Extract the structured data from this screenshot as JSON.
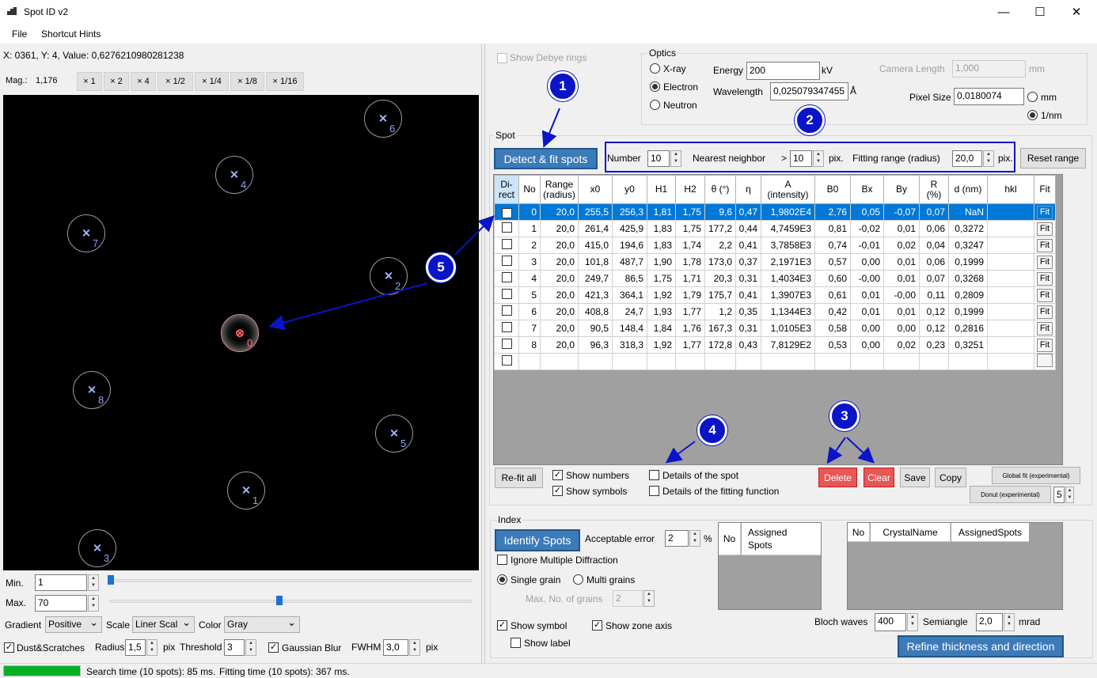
{
  "window": {
    "title": "Spot ID v2",
    "minimize": "—",
    "maximize": "☐",
    "close": "✕"
  },
  "menu": {
    "file": "File",
    "hints": "Shortcut Hints"
  },
  "left": {
    "coord_text": "X: 0361, Y: 4, Value: 0,6276210980281238",
    "mag_label": "Mag.:",
    "mag_value": "1,176",
    "mag_buttons": [
      "× 1",
      "× 2",
      "× 4",
      "× 1/2",
      "× 1/4",
      "× 1/8",
      "× 1/16"
    ],
    "spots": [
      {
        "n": "0"
      },
      {
        "n": "1"
      },
      {
        "n": "2"
      },
      {
        "n": "3"
      },
      {
        "n": "4"
      },
      {
        "n": "5"
      },
      {
        "n": "6"
      },
      {
        "n": "7"
      },
      {
        "n": "8"
      }
    ],
    "min_label": "Min.",
    "min_value": "1",
    "max_label": "Max.",
    "max_value": "70",
    "gradient_label": "Gradient",
    "gradient_value": "Positive",
    "scale_label": "Scale",
    "scale_value": "Liner Scal",
    "color_label": "Color",
    "color_value": "Gray",
    "dust_label": "Dust&Scratches",
    "radius_label": "Radius",
    "radius_value": "1,5",
    "radius_unit": "pix",
    "threshold_label": "Threshold",
    "threshold_value": "3",
    "blur_label": "Gaussian Blur",
    "fwhm_label": "FWHM",
    "fwhm_value": "3,0",
    "fwhm_unit": "pix"
  },
  "optics": {
    "show_debye": "Show Debye rings",
    "group_title": "Optics",
    "xray": "X-ray",
    "electron": "Electron",
    "neutron": "Neutron",
    "energy_label": "Energy",
    "energy_value": "200",
    "energy_unit": "kV",
    "wavelength_label": "Wavelength",
    "wavelength_value": "0,025079347455",
    "wavelength_unit": "Å",
    "camera_label": "Camera Length",
    "camera_value": "1,000",
    "camera_unit": "mm",
    "pixel_label": "Pixel Size",
    "pixel_value": "0,0180074",
    "unit_mm": "mm",
    "unit_nm": "1/nm"
  },
  "spot": {
    "group_title": "Spot",
    "detect_button": "Detect & fit spots",
    "number_label": "Number",
    "number_value": "10",
    "nn_label": "Nearest neighbor",
    "nn_gt": ">",
    "nn_value": "10",
    "nn_unit": "pix.",
    "fit_label": "Fitting range (radius)",
    "fit_value": "20,0",
    "fit_unit": "pix.",
    "reset_button": "Reset range",
    "columns": [
      "Di-\nrect",
      "No",
      "Range\n(radius)",
      "x0",
      "y0",
      "H1",
      "H2",
      "θ (°)",
      "η",
      "A\n(intensity)",
      "B0",
      "Bx",
      "By",
      "R\n(%)",
      "d (nm)",
      "hkl",
      "Fit"
    ],
    "rows": [
      [
        "0",
        "20,0",
        "255,5",
        "256,3",
        "1,81",
        "1,75",
        "9,6",
        "0,47",
        "1,9802E4",
        "2,76",
        "0,05",
        "-0,07",
        "0,07",
        "NaN",
        ""
      ],
      [
        "1",
        "20,0",
        "261,4",
        "425,9",
        "1,83",
        "1,75",
        "177,2",
        "0,44",
        "4,7459E3",
        "0,81",
        "-0,02",
        "0,01",
        "0,06",
        "0,3272",
        ""
      ],
      [
        "2",
        "20,0",
        "415,0",
        "194,6",
        "1,83",
        "1,74",
        "2,2",
        "0,41",
        "3,7858E3",
        "0,74",
        "-0,01",
        "0,02",
        "0,04",
        "0,3247",
        ""
      ],
      [
        "3",
        "20,0",
        "101,8",
        "487,7",
        "1,90",
        "1,78",
        "173,0",
        "0,37",
        "2,1971E3",
        "0,57",
        "0,00",
        "0,01",
        "0,06",
        "0,1999",
        ""
      ],
      [
        "4",
        "20,0",
        "249,7",
        "86,5",
        "1,75",
        "1,71",
        "20,3",
        "0,31",
        "1,4034E3",
        "0,60",
        "-0,00",
        "0,01",
        "0,07",
        "0,3268",
        ""
      ],
      [
        "5",
        "20,0",
        "421,3",
        "364,1",
        "1,92",
        "1,79",
        "175,7",
        "0,41",
        "1,3907E3",
        "0,61",
        "0,01",
        "-0,00",
        "0,11",
        "0,2809",
        ""
      ],
      [
        "6",
        "20,0",
        "408,8",
        "24,7",
        "1,93",
        "1,77",
        "1,2",
        "0,35",
        "1,1344E3",
        "0,42",
        "0,01",
        "0,01",
        "0,12",
        "0,1999",
        ""
      ],
      [
        "7",
        "20,0",
        "90,5",
        "148,4",
        "1,84",
        "1,76",
        "167,3",
        "0,31",
        "1,0105E3",
        "0,58",
        "0,00",
        "0,00",
        "0,12",
        "0,2816",
        ""
      ],
      [
        "8",
        "20,0",
        "96,3",
        "318,3",
        "1,92",
        "1,77",
        "172,8",
        "0,43",
        "7,8129E2",
        "0,53",
        "0,00",
        "0,02",
        "0,23",
        "0,3251",
        ""
      ]
    ],
    "fit_cell": "Fit",
    "refit_button": "Re-fit all",
    "show_numbers": "Show numbers",
    "show_symbols": "Show symbols",
    "details_spot": "Details of the spot",
    "details_fit": "Details of the fitting function",
    "delete_button": "Delete",
    "clear_button": "Clear",
    "save_button": "Save",
    "copy_button": "Copy",
    "global_fit": "Global fit  (experimental)",
    "donut": "Donut  (experimental)",
    "donut_value": "5"
  },
  "index": {
    "group_title": "Index",
    "identify_button": "Identify Spots",
    "acc_label": "Acceptable error",
    "acc_value": "2",
    "acc_unit": "%",
    "ignore_multi": "Ignore Multiple Diffraction",
    "single_grain": "Single grain",
    "multi_grains": "Multi grains",
    "max_grains_label": "Max. No. of grains",
    "max_grains_value": "2",
    "show_symbol": "Show symbol",
    "show_zone": "Show zone axis",
    "show_label": "Show label",
    "tbl1_no": "No",
    "tbl1_assigned": "Assigned\nSpots",
    "tbl2_no": "No",
    "tbl2_crystal": "CrystalName",
    "tbl2_assigned": "AssignedSpots",
    "bloch_label": "Bloch waves",
    "bloch_value": "400",
    "semi_label": "Semiangle",
    "semi_value": "2,0",
    "semi_unit": "mrad",
    "refine_button": "Refine thickness and direction"
  },
  "annotations": [
    "1",
    "2",
    "3",
    "4",
    "5"
  ],
  "status": {
    "search": "Search time (10 spots): 85 ms.",
    "fitting": "Fitting time (10 spots): 367 ms.",
    "progress": 1.0
  },
  "colors": {
    "accent": "#0078d7",
    "badge": "#0a14c8",
    "red": "#e85656"
  }
}
